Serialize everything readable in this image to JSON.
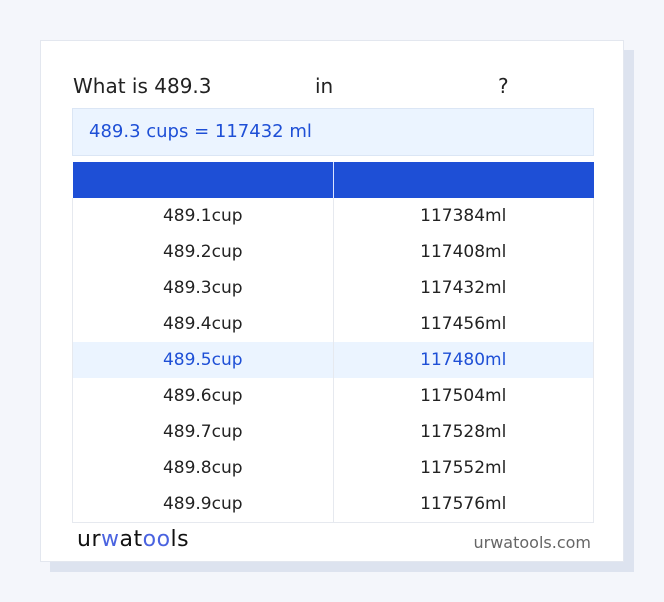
{
  "title": {
    "prefix": "What is 489.3",
    "middle": "in",
    "suffix": "?"
  },
  "result": "489.3 cups = 117432 ml",
  "table": {
    "headers": [
      "",
      ""
    ],
    "rows": [
      [
        "489.1cup",
        "117384ml"
      ],
      [
        "489.2cup",
        "117408ml"
      ],
      [
        "489.3cup",
        "117432ml"
      ],
      [
        "489.4cup",
        "117456ml"
      ],
      [
        "489.5cup",
        "117480ml"
      ],
      [
        "489.6cup",
        "117504ml"
      ],
      [
        "489.7cup",
        "117528ml"
      ],
      [
        "489.8cup",
        "117552ml"
      ],
      [
        "489.9cup",
        "117576ml"
      ]
    ],
    "highlighted_row": 4
  },
  "footer": {
    "logo": "urwatools",
    "site": "urwatools.com"
  },
  "colors": {
    "accent": "#1e4fd6",
    "highlight_bg": "#ebf4ff"
  }
}
